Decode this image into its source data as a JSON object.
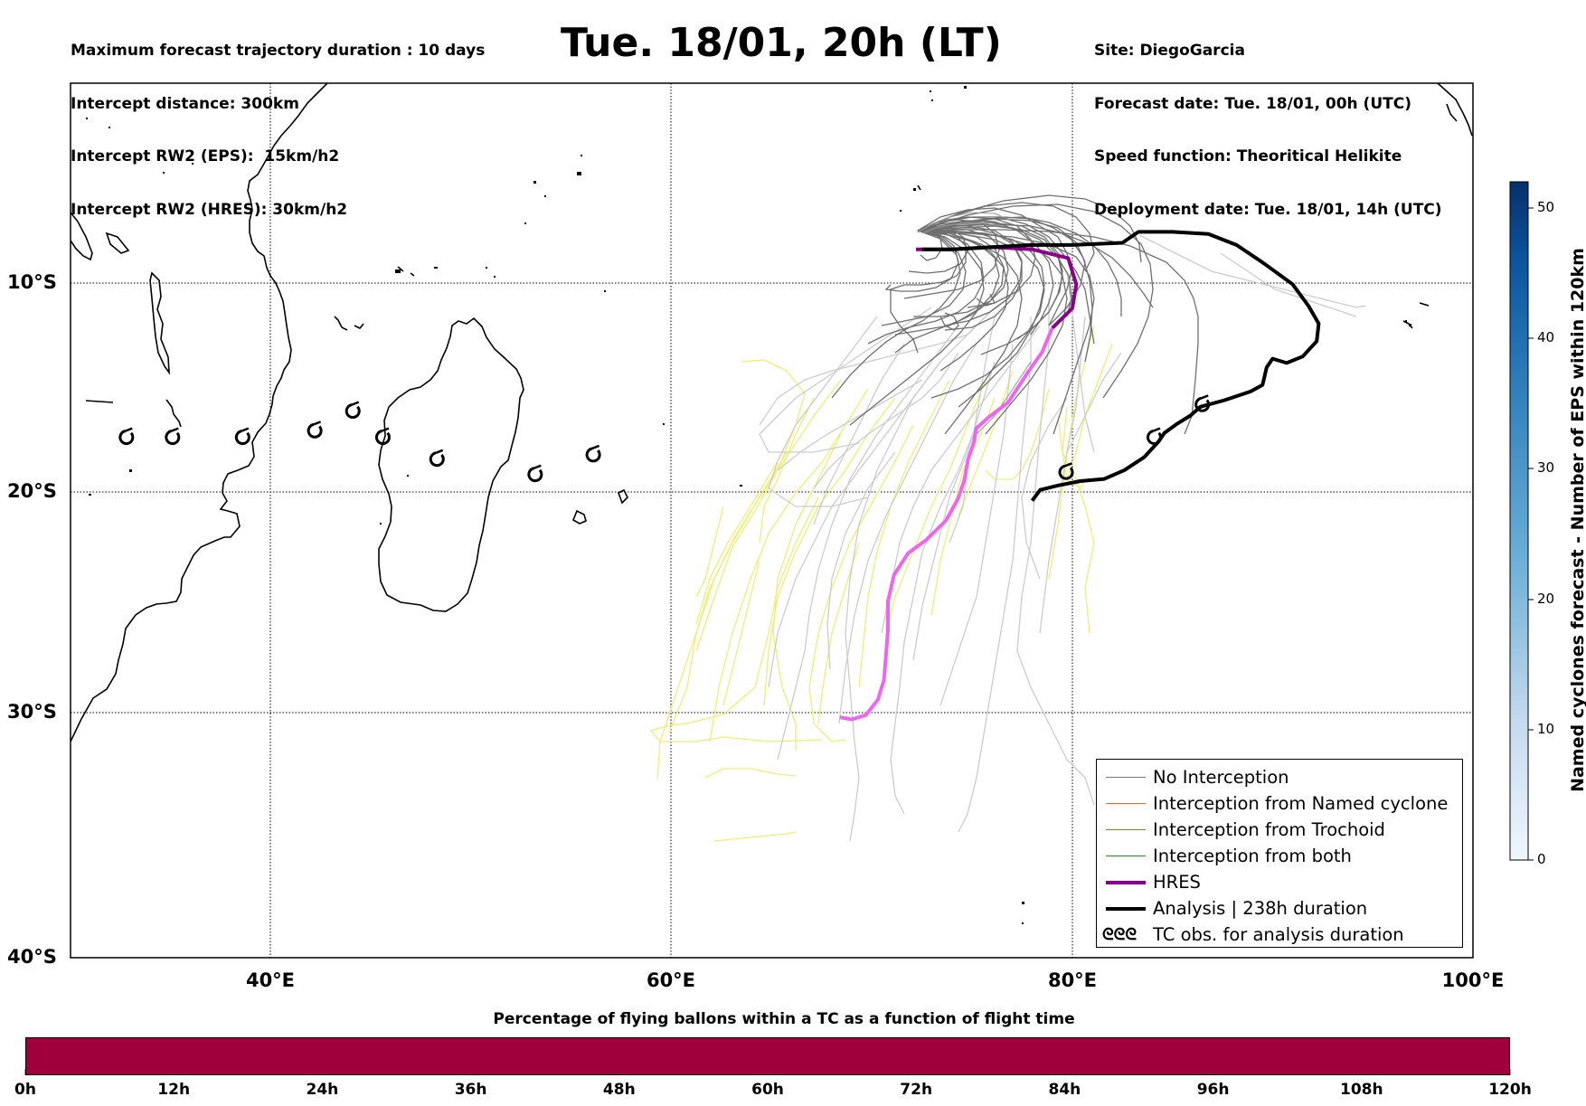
{
  "header_left": [
    "Maximum forecast trajectory duration : 10 days",
    "Intercept distance: 300km",
    "Intercept RW2 (EPS):  15km/h2",
    "Intercept RW2 (HRES): 30km/h2"
  ],
  "title": "Tue. 18/01, 20h (LT)",
  "header_right": [
    "Site: DiegoGarcia",
    "Forecast date: Tue. 18/01, 00h (UTC)",
    "Speed function: Theoritical Helikite",
    "Deployment date: Tue. 18/01, 14h (UTC)"
  ],
  "map": {
    "lon_range": [
      30,
      100
    ],
    "lat_range": [
      -40,
      0
    ],
    "lat_labels": [
      "10°S",
      "20°S",
      "30°S",
      "40°S"
    ],
    "lon_labels": [
      "40°E",
      "60°E",
      "80°E",
      "100°E"
    ],
    "grid": true,
    "grid_lons": [
      40,
      60,
      80
    ],
    "grid_lats": [
      -10,
      -20,
      -30
    ],
    "colors": {
      "no_interception": "#777777",
      "named_cyclone": "#ff5a1f",
      "trochoid": "#8b7d2a",
      "both": "#1a9a1a",
      "hres": "#8b008b",
      "hres_late": "#ee66ee",
      "analysis": "#000000",
      "eps_late_gray": "#cccccc",
      "eps_late_yellow": "#eeee77"
    },
    "icon_names": [
      "coastline",
      "cyclone-symbol-icon"
    ]
  },
  "colorbar": {
    "title": "Named cyclones forecast - Number of EPS within 120km",
    "ticks": [
      "0",
      "10",
      "20",
      "30",
      "40",
      "50"
    ],
    "range": [
      0,
      52
    ],
    "colormap": "Blues"
  },
  "legend": {
    "placement": "bottom-right",
    "items": [
      {
        "label": "No Interception",
        "color": "#777777",
        "width": 1.5
      },
      {
        "label": "Interception from Named cyclone",
        "color": "#ff5a1f",
        "width": 1.5
      },
      {
        "label": "Interception from Trochoid",
        "color": "#8b7d2a",
        "width": 1.5
      },
      {
        "label": "Interception from both",
        "color": "#1a9a1a",
        "width": 1.5
      },
      {
        "label": "HRES",
        "color": "#8b008b",
        "width": 4
      },
      {
        "label": "Analysis | 238h duration",
        "color": "#000000",
        "width": 4
      },
      {
        "label": "TC obs. for analysis duration",
        "color": "#000000",
        "symbol": "ᘓᘓᘓ"
      }
    ]
  },
  "chart_data": {
    "type": "line",
    "title": "Tue. 18/01, 20h (LT)",
    "xlabel": "",
    "ylabel": "",
    "xlim": [
      30,
      100
    ],
    "ylim": [
      -40,
      0
    ],
    "series": [
      {
        "name": "HRES",
        "points": [
          [
            72.2,
            -7.6
          ],
          [
            74.0,
            -7.6
          ],
          [
            76.0,
            -7.5
          ],
          [
            78.0,
            -7.6
          ],
          [
            79.8,
            -8.0
          ],
          [
            80.2,
            -9.2
          ],
          [
            80.0,
            -10.3
          ],
          [
            79.0,
            -11.2
          ],
          [
            78.5,
            -12.3
          ],
          [
            77.8,
            -13.2
          ],
          [
            76.8,
            -14.6
          ],
          [
            75.8,
            -15.3
          ],
          [
            75.2,
            -15.8
          ],
          [
            75.1,
            -16.4
          ],
          [
            74.8,
            -17.2
          ],
          [
            74.6,
            -18.2
          ],
          [
            74.3,
            -19.0
          ],
          [
            73.7,
            -20.0
          ],
          [
            72.7,
            -20.9
          ],
          [
            71.8,
            -21.5
          ],
          [
            71.1,
            -22.5
          ],
          [
            70.8,
            -23.7
          ],
          [
            70.8,
            -25.0
          ],
          [
            70.7,
            -26.2
          ],
          [
            70.6,
            -27.3
          ],
          [
            70.3,
            -28.2
          ],
          [
            69.7,
            -28.9
          ],
          [
            69.0,
            -29.1
          ],
          [
            68.4,
            -29.0
          ]
        ]
      },
      {
        "name": "Analysis | 238h duration",
        "points": [
          [
            72.5,
            -7.6
          ],
          [
            74.0,
            -7.6
          ],
          [
            76.0,
            -7.5
          ],
          [
            78.0,
            -7.4
          ],
          [
            80.0,
            -7.4
          ],
          [
            82.5,
            -7.3
          ],
          [
            83.3,
            -6.8
          ],
          [
            85.0,
            -6.8
          ],
          [
            86.8,
            -6.9
          ],
          [
            88.2,
            -7.4
          ],
          [
            89.5,
            -8.2
          ],
          [
            91.0,
            -9.2
          ],
          [
            91.8,
            -10.2
          ],
          [
            92.3,
            -11.0
          ],
          [
            92.2,
            -11.8
          ],
          [
            91.5,
            -12.5
          ],
          [
            90.7,
            -12.8
          ],
          [
            90.0,
            -12.6
          ],
          [
            89.7,
            -13.0
          ],
          [
            89.5,
            -13.8
          ],
          [
            88.9,
            -14.1
          ],
          [
            87.6,
            -14.5
          ],
          [
            86.4,
            -14.8
          ],
          [
            85.9,
            -15.2
          ],
          [
            85.2,
            -15.6
          ],
          [
            84.6,
            -16.0
          ],
          [
            84.3,
            -16.4
          ],
          [
            83.6,
            -17.1
          ],
          [
            82.6,
            -17.7
          ],
          [
            81.6,
            -18.1
          ],
          [
            80.4,
            -18.2
          ],
          [
            79.3,
            -18.4
          ],
          [
            78.4,
            -18.6
          ],
          [
            78.0,
            -19.1
          ]
        ]
      }
    ],
    "analysis_tc_obs": [
      [
        79.7,
        -17.8
      ],
      [
        84.1,
        -16.2
      ],
      [
        86.5,
        -14.7
      ]
    ],
    "historical_tc_obs": [
      [
        32.8,
        -16.2
      ],
      [
        35.1,
        -16.2
      ],
      [
        38.6,
        -16.2
      ],
      [
        42.2,
        -15.9
      ],
      [
        44.1,
        -15.0
      ],
      [
        45.6,
        -16.2
      ],
      [
        48.3,
        -17.2
      ],
      [
        53.2,
        -17.9
      ],
      [
        56.1,
        -17.0
      ]
    ]
  },
  "time_axis": {
    "title": "Percentage of flying ballons within a TC as a function of flight time",
    "labels": [
      "0h",
      "12h",
      "24h",
      "36h",
      "48h",
      "60h",
      "72h",
      "84h",
      "96h",
      "108h",
      "120h"
    ],
    "bar_color": "#a0003c",
    "percentage": 100
  }
}
